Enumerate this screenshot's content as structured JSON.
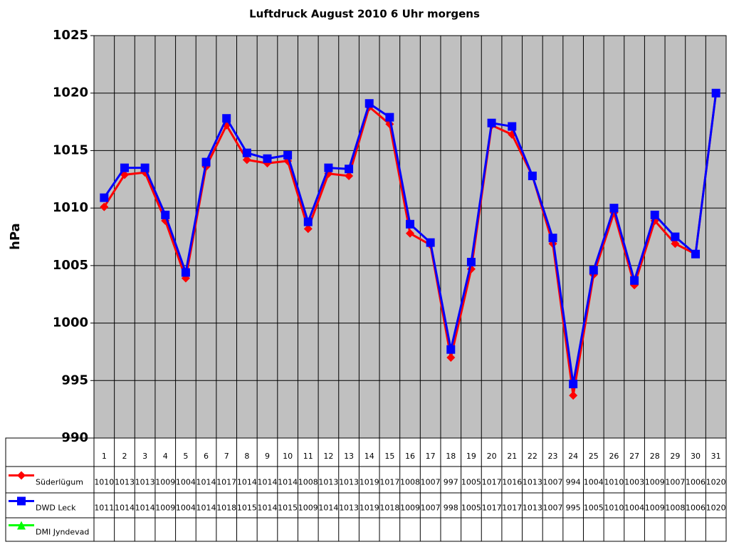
{
  "chart_data": {
    "type": "line",
    "title": "Luftdruck August 2010 6 Uhr morgens",
    "y_label": "hPa",
    "categories": [
      "1",
      "2",
      "3",
      "4",
      "5",
      "6",
      "7",
      "8",
      "9",
      "10",
      "11",
      "12",
      "13",
      "14",
      "15",
      "16",
      "17",
      "18",
      "19",
      "20",
      "21",
      "22",
      "23",
      "24",
      "25",
      "26",
      "27",
      "28",
      "29",
      "30",
      "31"
    ],
    "ylim": [
      990,
      1025
    ],
    "yticks": [
      990,
      995,
      1000,
      1005,
      1010,
      1015,
      1020,
      1025
    ],
    "grid": true,
    "series": [
      {
        "name": "Süderlügum",
        "color": "#ff0000",
        "marker": "diamond",
        "values": [
          1010.1,
          1012.9,
          1013.1,
          1008.9,
          1003.9,
          1013.6,
          1017.2,
          1014.2,
          1013.9,
          1014.1,
          1008.2,
          1013.0,
          1012.8,
          1018.8,
          1017.3,
          1007.8,
          1006.8,
          997.0,
          1004.7,
          1017.2,
          1016.4,
          1012.8,
          1006.9,
          993.7,
          1004.2,
          1009.6,
          1003.3,
          1008.9,
          1006.9,
          1006.0,
          1020.0
        ],
        "value_labels": [
          "1010",
          "1013",
          "1013",
          "1009",
          "1004",
          "1014",
          "1017",
          "1014",
          "1014",
          "1014",
          "1008",
          "1013",
          "1013",
          "1019",
          "1017",
          "1008",
          "1007",
          "997",
          "1005",
          "1017",
          "1016",
          "1013",
          "1007",
          "994",
          "1004",
          "1010",
          "1003",
          "1009",
          "1007",
          "1006",
          "1020"
        ]
      },
      {
        "name": "DWD Leck",
        "color": "#0000ff",
        "marker": "square",
        "values": [
          1010.9,
          1013.5,
          1013.5,
          1009.4,
          1004.4,
          1014.0,
          1017.8,
          1014.8,
          1014.3,
          1014.6,
          1008.8,
          1013.5,
          1013.4,
          1019.1,
          1017.9,
          1008.6,
          1007.0,
          997.7,
          1005.3,
          1017.4,
          1017.1,
          1012.8,
          1007.4,
          994.7,
          1004.6,
          1010.0,
          1003.7,
          1009.4,
          1007.5,
          1006.0,
          1020.0
        ],
        "value_labels": [
          "1011",
          "1014",
          "1014",
          "1009",
          "1004",
          "1014",
          "1018",
          "1015",
          "1014",
          "1015",
          "1009",
          "1014",
          "1013",
          "1019",
          "1018",
          "1009",
          "1007",
          "998",
          "1005",
          "1017",
          "1017",
          "1013",
          "1007",
          "995",
          "1005",
          "1010",
          "1004",
          "1009",
          "1008",
          "1006",
          "1020"
        ]
      },
      {
        "name": "DMI Jyndevad",
        "color": "#00ff00",
        "marker": "triangle",
        "values": [
          null,
          null,
          null,
          null,
          null,
          null,
          null,
          null,
          null,
          null,
          null,
          null,
          null,
          null,
          null,
          null,
          null,
          null,
          null,
          null,
          null,
          null,
          null,
          null,
          null,
          null,
          null,
          null,
          null,
          null,
          null
        ]
      }
    ]
  }
}
